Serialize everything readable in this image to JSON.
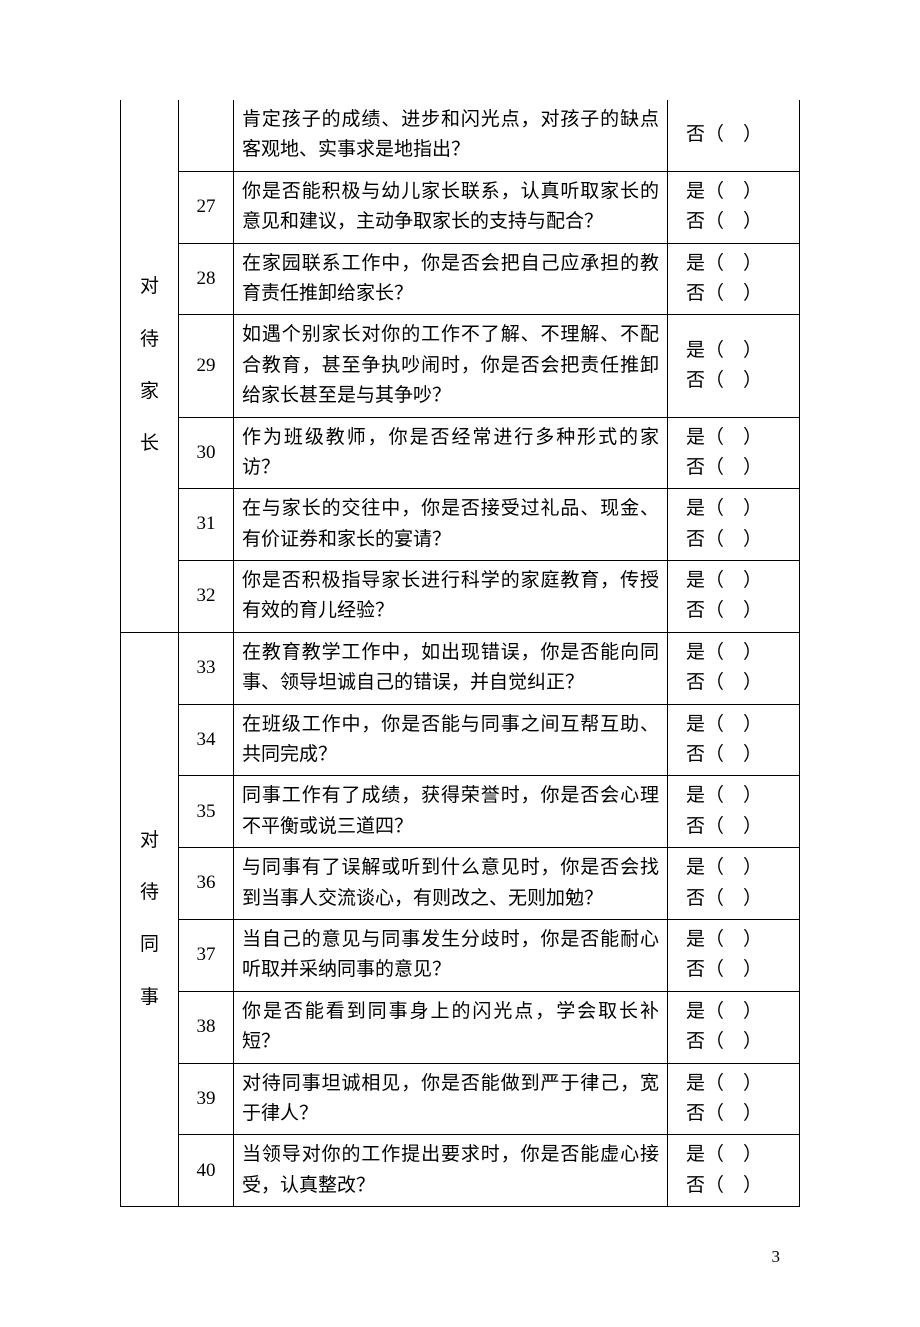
{
  "page_number": "3",
  "answer_yes": "是（　）",
  "answer_no": "否（　）",
  "sections": [
    {
      "category": "对待家长",
      "category_chars": [
        "对",
        "待",
        "家",
        "长"
      ],
      "rows": [
        {
          "num": "",
          "question": "肯定孩子的成绩、进步和闪光点，对孩子的缺点客观地、实事求是地指出？",
          "partial_top": true,
          "only_no": true
        },
        {
          "num": "27",
          "question": "你是否能积极与幼儿家长联系，认真听取家长的意见和建议，主动争取家长的支持与配合？"
        },
        {
          "num": "28",
          "question": "在家园联系工作中，你是否会把自己应承担的教育责任推卸给家长？"
        },
        {
          "num": "29",
          "question": "如遇个别家长对你的工作不了解、不理解、不配合教育，甚至争执吵闹时，你是否会把责任推卸给家长甚至是与其争吵？"
        },
        {
          "num": "30",
          "question": "作为班级教师，你是否经常进行多种形式的家访？"
        },
        {
          "num": "31",
          "question": "在与家长的交往中，你是否接受过礼品、现金、有价证券和家长的宴请？"
        },
        {
          "num": "32",
          "question": "你是否积极指导家长进行科学的家庭教育，传授有效的育儿经验？"
        }
      ]
    },
    {
      "category": "对待同事",
      "category_chars": [
        "对",
        "待",
        "同",
        "事"
      ],
      "rows": [
        {
          "num": "33",
          "question": "在教育教学工作中，如出现错误，你是否能向同事、领导坦诚自己的错误，并自觉纠正？"
        },
        {
          "num": "34",
          "question": "在班级工作中，你是否能与同事之间互帮互助、共同完成？"
        },
        {
          "num": "35",
          "question": "同事工作有了成绩，获得荣誉时，你是否会心理不平衡或说三道四？"
        },
        {
          "num": "36",
          "question": "与同事有了误解或听到什么意见时，你是否会找到当事人交流谈心，有则改之、无则加勉？"
        },
        {
          "num": "37",
          "question": "当自己的意见与同事发生分歧时，你是否能耐心听取并采纳同事的意见？"
        },
        {
          "num": "38",
          "question": "你是否能看到同事身上的闪光点，学会取长补短？"
        },
        {
          "num": "39",
          "question": "对待同事坦诚相见，你是否能做到严于律己，宽于律人？"
        },
        {
          "num": "40",
          "question": "当领导对你的工作提出要求时，你是否能虚心接受，认真整改？"
        }
      ]
    }
  ]
}
